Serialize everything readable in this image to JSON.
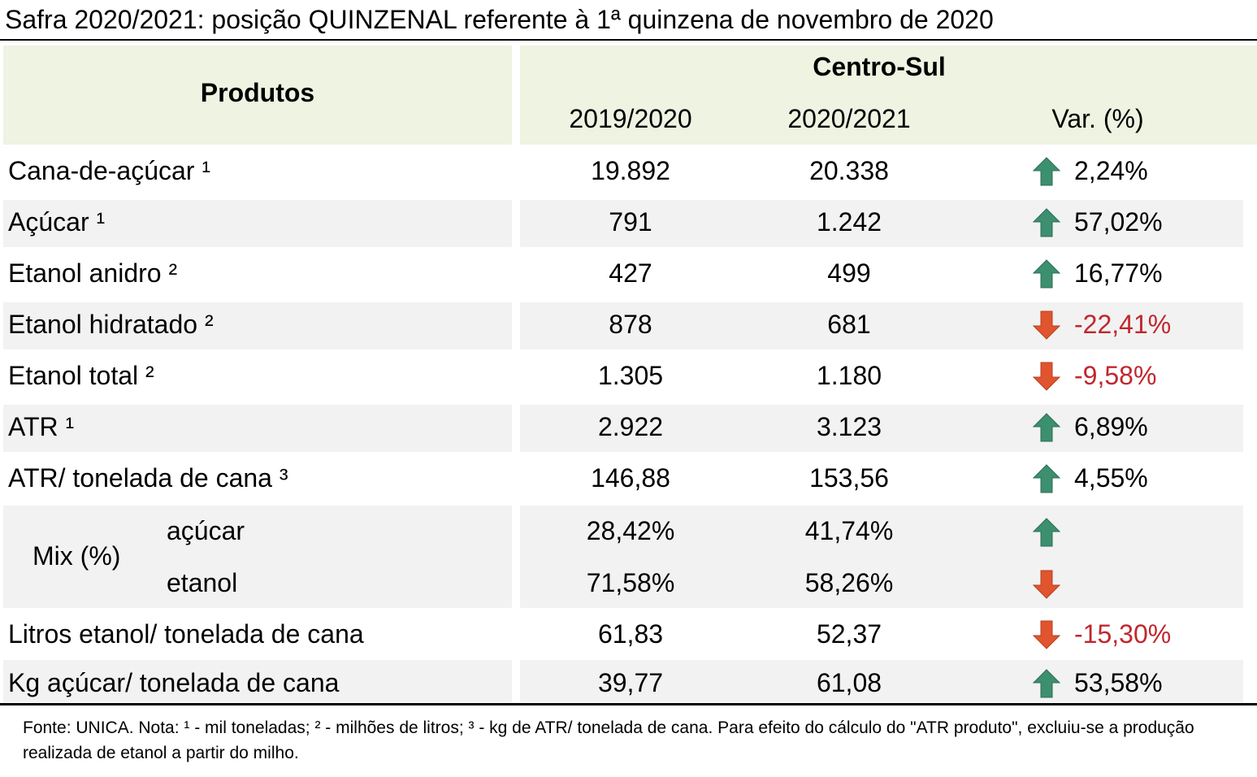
{
  "title": "Safra 2020/2021: posição QUINZENAL referente à 1ª quinzena de novembro de 2020",
  "header": {
    "produtos": "Produtos",
    "region": "Centro-Sul",
    "col1": "2019/2020",
    "col2": "2020/2021",
    "col3": "Var. (%)"
  },
  "rows": [
    {
      "label": "Cana-de-açúcar ¹",
      "v1": "19.892",
      "v2": "20.338",
      "var": "2,24%",
      "dir": "up"
    },
    {
      "label": "Açúcar ¹",
      "v1": "791",
      "v2": "1.242",
      "var": "57,02%",
      "dir": "up"
    },
    {
      "label": "Etanol anidro ²",
      "v1": "427",
      "v2": "499",
      "var": "16,77%",
      "dir": "up"
    },
    {
      "label": "Etanol hidratado ²",
      "v1": "878",
      "v2": "681",
      "var": "-22,41%",
      "dir": "down"
    },
    {
      "label": "Etanol total ²",
      "v1": "1.305",
      "v2": "1.180",
      "var": "-9,58%",
      "dir": "down"
    },
    {
      "label": "ATR ¹",
      "v1": "2.922",
      "v2": "3.123",
      "var": "6,89%",
      "dir": "up"
    },
    {
      "label": "ATR/ tonelada de cana ³",
      "v1": "146,88",
      "v2": "153,56",
      "var": "4,55%",
      "dir": "up"
    }
  ],
  "mix": {
    "label": "Mix (%)",
    "acucar": {
      "label": "açúcar",
      "v1": "28,42%",
      "v2": "41,74%",
      "dir": "up"
    },
    "etanol": {
      "label": "etanol",
      "v1": "71,58%",
      "v2": "58,26%",
      "dir": "down"
    }
  },
  "rows2": [
    {
      "label": "Litros etanol/ tonelada de cana",
      "v1": "61,83",
      "v2": "52,37",
      "var": "-15,30%",
      "dir": "down"
    },
    {
      "label": "Kg açúcar/ tonelada de cana",
      "v1": "39,77",
      "v2": "61,08",
      "var": "53,58%",
      "dir": "up"
    }
  ],
  "footnote": "Fonte: UNICA. Nota: ¹ - mil toneladas; ² - milhões de litros; ³ - kg de ATR/ tonelada de cana. Para efeito do cálculo do \"ATR produto\", excluiu-se a produção realizada de etanol a partir do milho.",
  "colors": {
    "header_bg": "#eef3e2",
    "shade_bg": "#f2f2f2",
    "up_arrow": "#3c8f6f",
    "down_arrow": "#e0542e",
    "negative_text": "#c0272d"
  }
}
